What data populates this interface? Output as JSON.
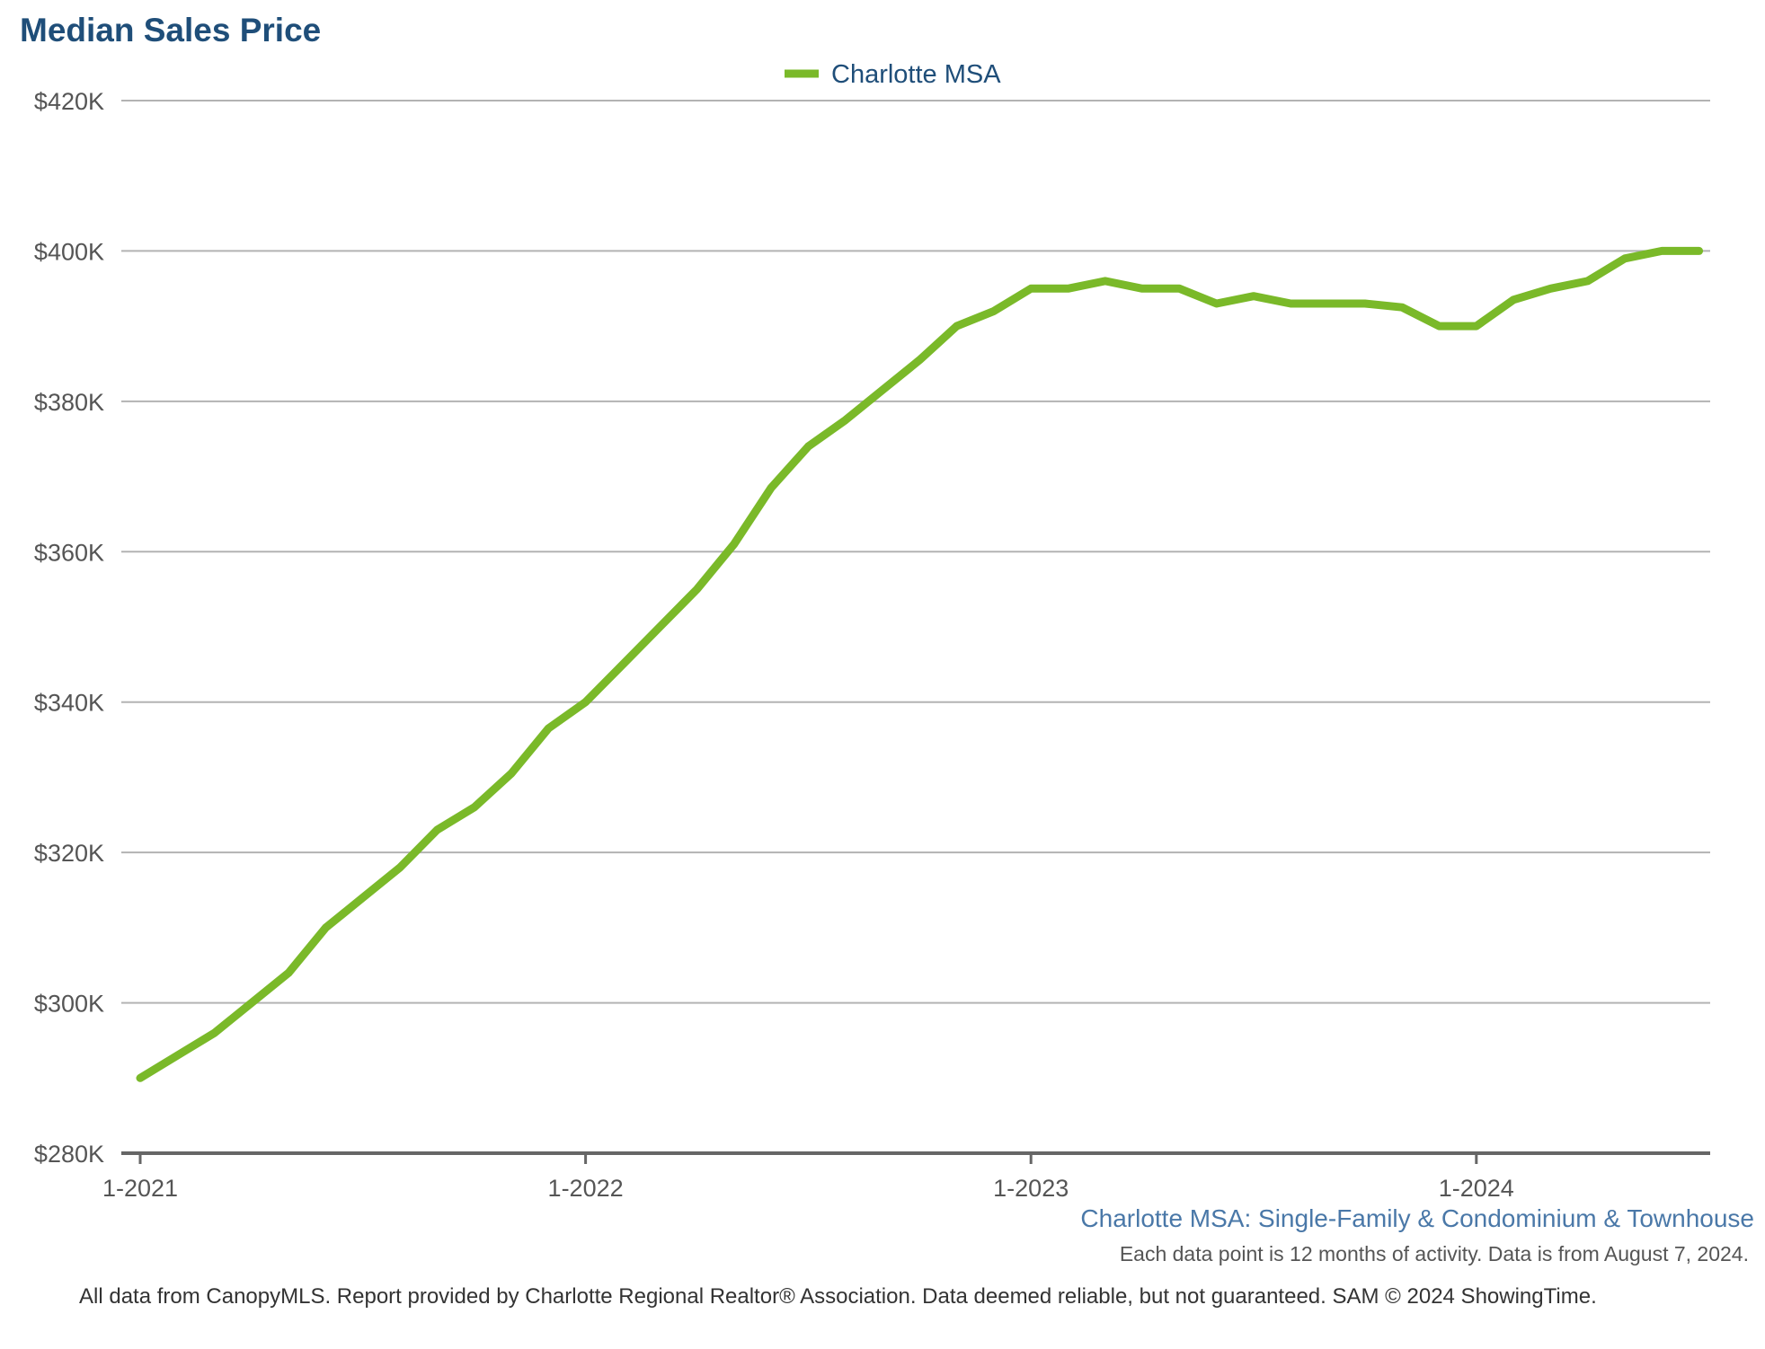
{
  "chart_data": {
    "type": "line",
    "title": "Median Sales Price",
    "subtitle": "Charlotte MSA: Single-Family & Condominium & Townhouse",
    "note": "Each data point is 12 months of activity. Data is from August 7, 2024.",
    "footer": "All data from CanopyMLS. Report provided by Charlotte Regional Realtor® Association. Data deemed reliable, but not guaranteed. SAM © 2024 ShowingTime.",
    "legend_position": "top-center",
    "grid": true,
    "ylim": [
      280000,
      420000
    ],
    "y_ticks": [
      280000,
      300000,
      320000,
      340000,
      360000,
      380000,
      400000,
      420000
    ],
    "y_tick_labels": [
      "$280K",
      "$300K",
      "$320K",
      "$340K",
      "$360K",
      "$380K",
      "$400K",
      "$420K"
    ],
    "x_tick_labels": [
      "1-2021",
      "1-2022",
      "1-2023",
      "1-2024"
    ],
    "x": [
      "1-2021",
      "2-2021",
      "3-2021",
      "4-2021",
      "5-2021",
      "6-2021",
      "7-2021",
      "8-2021",
      "9-2021",
      "10-2021",
      "11-2021",
      "12-2021",
      "1-2022",
      "2-2022",
      "3-2022",
      "4-2022",
      "5-2022",
      "6-2022",
      "7-2022",
      "8-2022",
      "9-2022",
      "10-2022",
      "11-2022",
      "12-2022",
      "1-2023",
      "2-2023",
      "3-2023",
      "4-2023",
      "5-2023",
      "6-2023",
      "7-2023",
      "8-2023",
      "9-2023",
      "10-2023",
      "11-2023",
      "12-2023",
      "1-2024",
      "2-2024",
      "3-2024",
      "4-2024",
      "5-2024",
      "6-2024",
      "7-2024"
    ],
    "series": [
      {
        "name": "Charlotte MSA",
        "color": "#7ab929",
        "values": [
          290000,
          293000,
          296000,
          300000,
          304000,
          310000,
          314000,
          318000,
          323000,
          326000,
          330500,
          336500,
          340000,
          345000,
          350000,
          355000,
          361000,
          368500,
          374000,
          377500,
          381500,
          385500,
          390000,
          392000,
          395000,
          395000,
          396000,
          395000,
          395000,
          393000,
          394000,
          393000,
          393000,
          393000,
          392500,
          390000,
          390000,
          393500,
          395000,
          396000,
          399000,
          400000,
          400000
        ]
      }
    ]
  }
}
